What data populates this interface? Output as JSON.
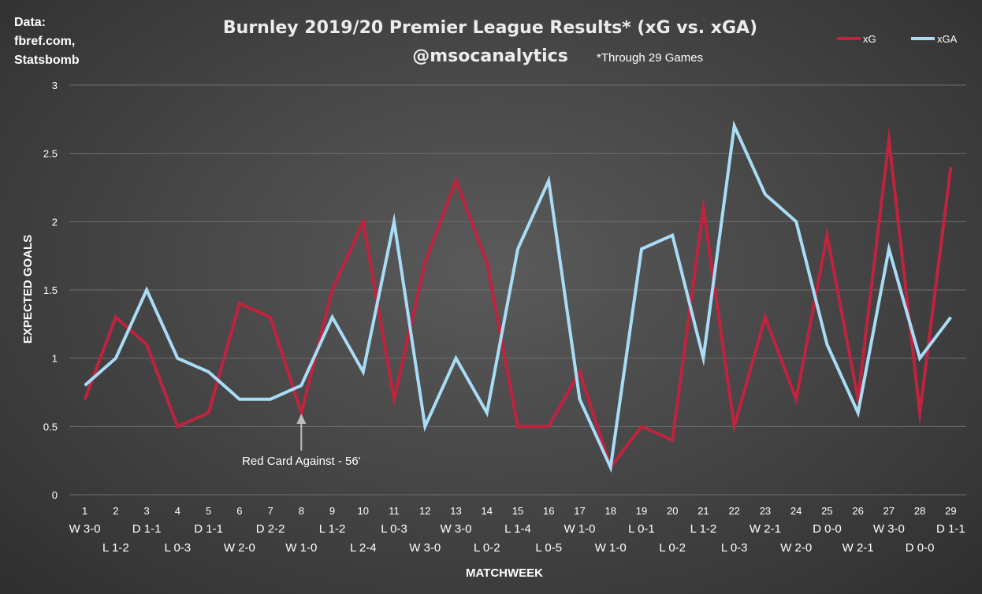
{
  "header": {
    "source_lines": [
      "Data:",
      "fbref.com,",
      "Statsbomb"
    ],
    "title": "Burnley 2019/20 Premier League Results* (xG vs. xGA)",
    "subtitle": "@msocanalytics",
    "footnote": "*Through 29 Games"
  },
  "annotation": {
    "text": "Red Card Against - 56'",
    "matchweek": 8
  },
  "chart_data": {
    "type": "line",
    "xlabel": "MATCHWEEK",
    "ylabel": "EXPECTED GOALS",
    "ylim": [
      0,
      3
    ],
    "yticks": [
      0,
      0.5,
      1,
      1.5,
      2,
      2.5,
      3
    ],
    "grid": true,
    "legend": "top-right",
    "x": [
      1,
      2,
      3,
      4,
      5,
      6,
      7,
      8,
      9,
      10,
      11,
      12,
      13,
      14,
      15,
      16,
      17,
      18,
      19,
      20,
      21,
      22,
      23,
      24,
      25,
      26,
      27,
      28,
      29
    ],
    "results": [
      "W 3-0",
      "L 1-2",
      "D 1-1",
      "L 0-3",
      "D 1-1",
      "W 2-0",
      "D 2-2",
      "W 1-0",
      "L 1-2",
      "L 2-4",
      "L 0-3",
      "W 3-0",
      "W 3-0",
      "L 0-2",
      "L 1-4",
      "L 0-5",
      "W 1-0",
      "W 1-0",
      "L 0-1",
      "L 0-2",
      "L 1-2",
      "L 0-3",
      "W 2-1",
      "W 2-0",
      "D 0-0",
      "W 2-1",
      "W 3-0",
      "D 0-0",
      "D 1-1"
    ],
    "series": [
      {
        "name": "xG",
        "color": "#c0233e",
        "values": [
          0.7,
          1.3,
          1.1,
          0.5,
          0.6,
          1.4,
          1.3,
          0.6,
          1.5,
          2.0,
          0.7,
          1.7,
          2.3,
          1.7,
          0.5,
          0.5,
          0.9,
          0.2,
          0.5,
          0.4,
          2.1,
          0.5,
          1.3,
          0.7,
          1.9,
          0.7,
          2.6,
          0.6,
          2.4
        ]
      },
      {
        "name": "xGA",
        "color": "#a8dcf7",
        "values": [
          0.8,
          1.0,
          1.5,
          1.0,
          0.9,
          0.7,
          0.7,
          0.8,
          1.3,
          0.9,
          2.0,
          0.5,
          1.0,
          0.6,
          1.8,
          2.3,
          0.7,
          0.2,
          1.8,
          1.9,
          1.0,
          2.7,
          2.2,
          2.0,
          1.1,
          0.6,
          1.8,
          1.0,
          1.3
        ]
      }
    ]
  }
}
